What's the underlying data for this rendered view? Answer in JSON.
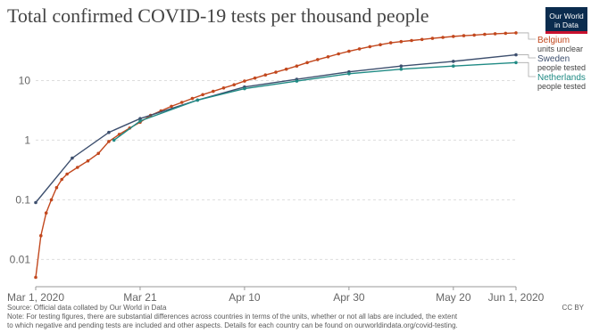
{
  "header": {
    "title": "Total confirmed COVID-19 tests per thousand people",
    "logo_line1": "Our World",
    "logo_line2": "in Data"
  },
  "footer": {
    "source": "Source: Official data collated by Our World in Data",
    "license": "CC BY",
    "note_line1": "Note: For testing figures, there are substantial differences across countries in terms of the units, whether or not all labs are included, the extent",
    "note_line2": "to which negative and pending tests are included and other aspects. Details for each country can be found on ourworldindata.org/covid-testing."
  },
  "colors": {
    "belgium": "#c2481e",
    "sweden": "#3d4f6e",
    "netherlands": "#1f8a84",
    "grid": "#dddddd"
  },
  "chart_data": {
    "type": "line",
    "title": "Total confirmed COVID-19 tests per thousand people",
    "y_scale": "log",
    "ylim": [
      0.004,
      80
    ],
    "yticks": [
      0.01,
      0.1,
      1,
      10
    ],
    "ytick_labels": [
      "0.01",
      "0.1",
      "1",
      "10"
    ],
    "xlim": [
      "2020-03-01",
      "2020-06-01"
    ],
    "xticks": [
      "2020-03-01",
      "2020-03-21",
      "2020-04-10",
      "2020-04-30",
      "2020-05-20",
      "2020-06-01"
    ],
    "xtick_labels": [
      "Mar 1, 2020",
      "Mar 21",
      "Apr 10",
      "Apr 30",
      "May 20",
      "Jun 1, 2020"
    ],
    "grid": true,
    "series": [
      {
        "name": "Belgium",
        "sublabel": "units unclear",
        "color_key": "belgium",
        "markers": true,
        "x": [
          "2020-03-01",
          "2020-03-02",
          "2020-03-03",
          "2020-03-04",
          "2020-03-05",
          "2020-03-06",
          "2020-03-07",
          "2020-03-09",
          "2020-03-11",
          "2020-03-13",
          "2020-03-15",
          "2020-03-17",
          "2020-03-19",
          "2020-03-21",
          "2020-03-23",
          "2020-03-25",
          "2020-03-27",
          "2020-03-29",
          "2020-03-31",
          "2020-04-02",
          "2020-04-04",
          "2020-04-06",
          "2020-04-08",
          "2020-04-10",
          "2020-04-12",
          "2020-04-14",
          "2020-04-16",
          "2020-04-18",
          "2020-04-20",
          "2020-04-22",
          "2020-04-24",
          "2020-04-26",
          "2020-04-28",
          "2020-04-30",
          "2020-05-02",
          "2020-05-04",
          "2020-05-06",
          "2020-05-08",
          "2020-05-10",
          "2020-05-12",
          "2020-05-14",
          "2020-05-16",
          "2020-05-18",
          "2020-05-20",
          "2020-05-22",
          "2020-05-24",
          "2020-05-26",
          "2020-05-28",
          "2020-05-30",
          "2020-06-01"
        ],
        "values": [
          0.005,
          0.025,
          0.06,
          0.1,
          0.16,
          0.22,
          0.27,
          0.35,
          0.45,
          0.6,
          0.95,
          1.25,
          1.6,
          2.0,
          2.6,
          3.1,
          3.7,
          4.3,
          5.0,
          5.8,
          6.6,
          7.5,
          8.5,
          9.8,
          11.0,
          12.4,
          13.8,
          15.5,
          17.5,
          20.0,
          22.5,
          25.0,
          28.0,
          31.0,
          34.0,
          37.0,
          40.0,
          43.0,
          45.0,
          47.0,
          49.0,
          51.0,
          53.0,
          55.0,
          56.5,
          58.0,
          59.5,
          61.0,
          62.0,
          63.0
        ]
      },
      {
        "name": "Sweden",
        "sublabel": "people tested",
        "color_key": "sweden",
        "markers": true,
        "x": [
          "2020-03-01",
          "2020-03-08",
          "2020-03-15",
          "2020-03-21",
          "2020-04-01",
          "2020-04-10",
          "2020-04-20",
          "2020-04-30",
          "2020-05-10",
          "2020-05-20",
          "2020-06-01"
        ],
        "values": [
          0.09,
          0.5,
          1.35,
          2.3,
          4.7,
          7.8,
          10.5,
          14.0,
          17.5,
          21.0,
          27.0
        ]
      },
      {
        "name": "Netherlands",
        "sublabel": "people tested",
        "color_key": "netherlands",
        "markers": true,
        "x": [
          "2020-03-16",
          "2020-03-21",
          "2020-04-01",
          "2020-04-10",
          "2020-04-20",
          "2020-04-30",
          "2020-05-10",
          "2020-05-20",
          "2020-06-01"
        ],
        "values": [
          1.0,
          2.1,
          4.7,
          7.3,
          9.8,
          13.0,
          15.5,
          17.5,
          20.0
        ]
      }
    ]
  }
}
